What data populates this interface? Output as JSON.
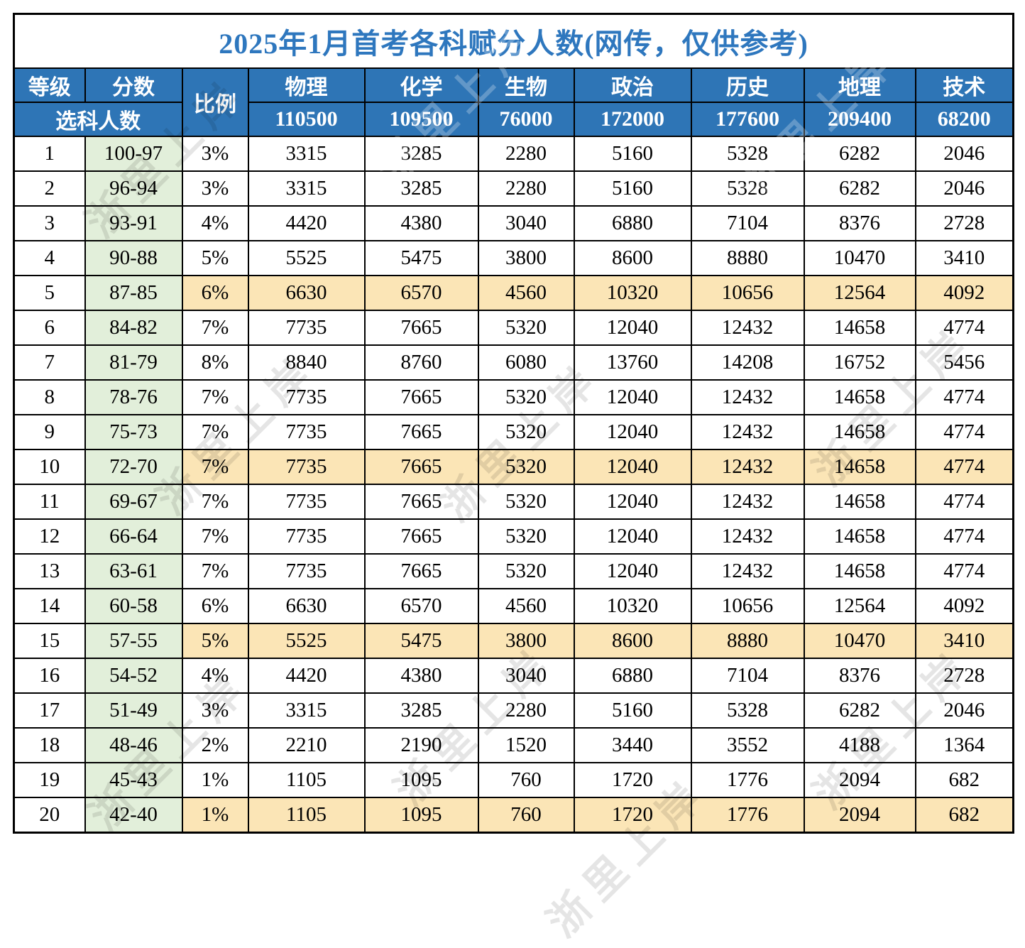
{
  "title": "2025年1月首考各科赋分人数(网传，仅供参考)",
  "watermark": {
    "text": "浙里上岸"
  },
  "colors": {
    "header_blue": "#2E75B6",
    "title_blue": "#2E77BE",
    "score_green": "#E2EFDA",
    "highlight_yellow": "#FBE5B6",
    "border_black": "#000000"
  },
  "header": {
    "grade_label": "等级",
    "score_label": "分数",
    "ratio_label": "比例",
    "selection_count_label": "选科人数",
    "subjects": [
      {
        "name": "物理",
        "total": "110500"
      },
      {
        "name": "化学",
        "total": "109500"
      },
      {
        "name": "生物",
        "total": "76000"
      },
      {
        "name": "政治",
        "total": "172000"
      },
      {
        "name": "历史",
        "total": "177600"
      },
      {
        "name": "地理",
        "total": "209400"
      },
      {
        "name": "技术",
        "total": "68200"
      }
    ]
  },
  "rows": [
    {
      "grade": "1",
      "score": "100-97",
      "ratio": "3%",
      "values": [
        "3315",
        "3285",
        "2280",
        "5160",
        "5328",
        "6282",
        "2046"
      ],
      "highlight": false
    },
    {
      "grade": "2",
      "score": "96-94",
      "ratio": "3%",
      "values": [
        "3315",
        "3285",
        "2280",
        "5160",
        "5328",
        "6282",
        "2046"
      ],
      "highlight": false
    },
    {
      "grade": "3",
      "score": "93-91",
      "ratio": "4%",
      "values": [
        "4420",
        "4380",
        "3040",
        "6880",
        "7104",
        "8376",
        "2728"
      ],
      "highlight": false
    },
    {
      "grade": "4",
      "score": "90-88",
      "ratio": "5%",
      "values": [
        "5525",
        "5475",
        "3800",
        "8600",
        "8880",
        "10470",
        "3410"
      ],
      "highlight": false
    },
    {
      "grade": "5",
      "score": "87-85",
      "ratio": "6%",
      "values": [
        "6630",
        "6570",
        "4560",
        "10320",
        "10656",
        "12564",
        "4092"
      ],
      "highlight": true
    },
    {
      "grade": "6",
      "score": "84-82",
      "ratio": "7%",
      "values": [
        "7735",
        "7665",
        "5320",
        "12040",
        "12432",
        "14658",
        "4774"
      ],
      "highlight": false
    },
    {
      "grade": "7",
      "score": "81-79",
      "ratio": "8%",
      "values": [
        "8840",
        "8760",
        "6080",
        "13760",
        "14208",
        "16752",
        "5456"
      ],
      "highlight": false
    },
    {
      "grade": "8",
      "score": "78-76",
      "ratio": "7%",
      "values": [
        "7735",
        "7665",
        "5320",
        "12040",
        "12432",
        "14658",
        "4774"
      ],
      "highlight": false
    },
    {
      "grade": "9",
      "score": "75-73",
      "ratio": "7%",
      "values": [
        "7735",
        "7665",
        "5320",
        "12040",
        "12432",
        "14658",
        "4774"
      ],
      "highlight": false
    },
    {
      "grade": "10",
      "score": "72-70",
      "ratio": "7%",
      "values": [
        "7735",
        "7665",
        "5320",
        "12040",
        "12432",
        "14658",
        "4774"
      ],
      "highlight": true
    },
    {
      "grade": "11",
      "score": "69-67",
      "ratio": "7%",
      "values": [
        "7735",
        "7665",
        "5320",
        "12040",
        "12432",
        "14658",
        "4774"
      ],
      "highlight": false
    },
    {
      "grade": "12",
      "score": "66-64",
      "ratio": "7%",
      "values": [
        "7735",
        "7665",
        "5320",
        "12040",
        "12432",
        "14658",
        "4774"
      ],
      "highlight": false
    },
    {
      "grade": "13",
      "score": "63-61",
      "ratio": "7%",
      "values": [
        "7735",
        "7665",
        "5320",
        "12040",
        "12432",
        "14658",
        "4774"
      ],
      "highlight": false
    },
    {
      "grade": "14",
      "score": "60-58",
      "ratio": "6%",
      "values": [
        "6630",
        "6570",
        "4560",
        "10320",
        "10656",
        "12564",
        "4092"
      ],
      "highlight": false
    },
    {
      "grade": "15",
      "score": "57-55",
      "ratio": "5%",
      "values": [
        "5525",
        "5475",
        "3800",
        "8600",
        "8880",
        "10470",
        "3410"
      ],
      "highlight": true
    },
    {
      "grade": "16",
      "score": "54-52",
      "ratio": "4%",
      "values": [
        "4420",
        "4380",
        "3040",
        "6880",
        "7104",
        "8376",
        "2728"
      ],
      "highlight": false
    },
    {
      "grade": "17",
      "score": "51-49",
      "ratio": "3%",
      "values": [
        "3315",
        "3285",
        "2280",
        "5160",
        "5328",
        "6282",
        "2046"
      ],
      "highlight": false
    },
    {
      "grade": "18",
      "score": "48-46",
      "ratio": "2%",
      "values": [
        "2210",
        "2190",
        "1520",
        "3440",
        "3552",
        "4188",
        "1364"
      ],
      "highlight": false
    },
    {
      "grade": "19",
      "score": "45-43",
      "ratio": "1%",
      "values": [
        "1105",
        "1095",
        "760",
        "1720",
        "1776",
        "2094",
        "682"
      ],
      "highlight": false
    },
    {
      "grade": "20",
      "score": "42-40",
      "ratio": "1%",
      "values": [
        "1105",
        "1095",
        "760",
        "1720",
        "1776",
        "2094",
        "682"
      ],
      "highlight": true
    }
  ]
}
